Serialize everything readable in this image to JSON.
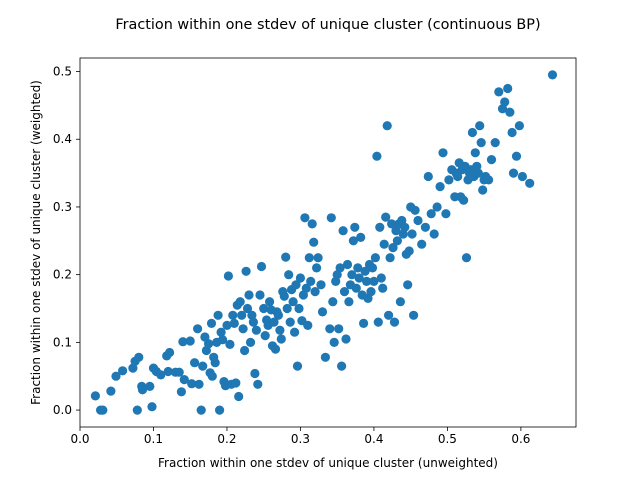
{
  "chart_data": {
    "type": "scatter",
    "title": "Fraction within one stdev of unique cluster (continuous BP)",
    "xlabel": "Fraction within one stdev of unique cluster (unweighted)",
    "ylabel": "Fraction within one stdev of unique cluster (weighted)",
    "xlim": [
      0.0,
      0.675
    ],
    "ylim": [
      -0.025,
      0.52
    ],
    "xticks": [
      0.0,
      0.1,
      0.2,
      0.3,
      0.4,
      0.5,
      0.6
    ],
    "xtick_labels": [
      "0.0",
      "0.1",
      "0.2",
      "0.3",
      "0.4",
      "0.5",
      "0.6"
    ],
    "yticks": [
      0.0,
      0.1,
      0.2,
      0.3,
      0.4,
      0.5
    ],
    "ytick_labels": [
      "0.0",
      "0.1",
      "0.2",
      "0.3",
      "0.4",
      "0.5"
    ],
    "grid": false,
    "marker_color": "#1f77b4",
    "points": [
      [
        0.021,
        0.021
      ],
      [
        0.028,
        0.0
      ],
      [
        0.031,
        0.0
      ],
      [
        0.042,
        0.028
      ],
      [
        0.049,
        0.05
      ],
      [
        0.058,
        0.058
      ],
      [
        0.072,
        0.062
      ],
      [
        0.075,
        0.072
      ],
      [
        0.078,
        0.0
      ],
      [
        0.08,
        0.078
      ],
      [
        0.084,
        0.035
      ],
      [
        0.085,
        0.03
      ],
      [
        0.095,
        0.035
      ],
      [
        0.098,
        0.005
      ],
      [
        0.1,
        0.062
      ],
      [
        0.104,
        0.057
      ],
      [
        0.11,
        0.052
      ],
      [
        0.118,
        0.08
      ],
      [
        0.12,
        0.057
      ],
      [
        0.122,
        0.085
      ],
      [
        0.13,
        0.056
      ],
      [
        0.135,
        0.056
      ],
      [
        0.138,
        0.027
      ],
      [
        0.14,
        0.101
      ],
      [
        0.142,
        0.045
      ],
      [
        0.15,
        0.102
      ],
      [
        0.152,
        0.039
      ],
      [
        0.156,
        0.07
      ],
      [
        0.16,
        0.12
      ],
      [
        0.162,
        0.038
      ],
      [
        0.165,
        0.0
      ],
      [
        0.167,
        0.065
      ],
      [
        0.17,
        0.108
      ],
      [
        0.172,
        0.088
      ],
      [
        0.175,
        0.098
      ],
      [
        0.177,
        0.055
      ],
      [
        0.179,
        0.128
      ],
      [
        0.18,
        0.05
      ],
      [
        0.182,
        0.078
      ],
      [
        0.184,
        0.07
      ],
      [
        0.186,
        0.1
      ],
      [
        0.188,
        0.14
      ],
      [
        0.19,
        0.0
      ],
      [
        0.192,
        0.115
      ],
      [
        0.194,
        0.104
      ],
      [
        0.196,
        0.042
      ],
      [
        0.198,
        0.036
      ],
      [
        0.2,
        0.125
      ],
      [
        0.202,
        0.198
      ],
      [
        0.204,
        0.097
      ],
      [
        0.206,
        0.038
      ],
      [
        0.208,
        0.14
      ],
      [
        0.21,
        0.128
      ],
      [
        0.212,
        0.04
      ],
      [
        0.214,
        0.155
      ],
      [
        0.216,
        0.02
      ],
      [
        0.218,
        0.16
      ],
      [
        0.22,
        0.14
      ],
      [
        0.222,
        0.12
      ],
      [
        0.224,
        0.088
      ],
      [
        0.226,
        0.205
      ],
      [
        0.228,
        0.15
      ],
      [
        0.23,
        0.17
      ],
      [
        0.232,
        0.1
      ],
      [
        0.234,
        0.14
      ],
      [
        0.236,
        0.13
      ],
      [
        0.238,
        0.054
      ],
      [
        0.24,
        0.118
      ],
      [
        0.242,
        0.038
      ],
      [
        0.245,
        0.17
      ],
      [
        0.247,
        0.212
      ],
      [
        0.25,
        0.15
      ],
      [
        0.252,
        0.11
      ],
      [
        0.254,
        0.133
      ],
      [
        0.256,
        0.125
      ],
      [
        0.258,
        0.16
      ],
      [
        0.26,
        0.148
      ],
      [
        0.262,
        0.095
      ],
      [
        0.264,
        0.13
      ],
      [
        0.266,
        0.09
      ],
      [
        0.268,
        0.145
      ],
      [
        0.27,
        0.14
      ],
      [
        0.272,
        0.118
      ],
      [
        0.274,
        0.105
      ],
      [
        0.276,
        0.175
      ],
      [
        0.278,
        0.168
      ],
      [
        0.28,
        0.226
      ],
      [
        0.282,
        0.15
      ],
      [
        0.284,
        0.2
      ],
      [
        0.286,
        0.13
      ],
      [
        0.288,
        0.178
      ],
      [
        0.29,
        0.16
      ],
      [
        0.292,
        0.115
      ],
      [
        0.294,
        0.185
      ],
      [
        0.296,
        0.065
      ],
      [
        0.298,
        0.15
      ],
      [
        0.3,
        0.195
      ],
      [
        0.302,
        0.132
      ],
      [
        0.304,
        0.17
      ],
      [
        0.306,
        0.284
      ],
      [
        0.308,
        0.18
      ],
      [
        0.31,
        0.125
      ],
      [
        0.312,
        0.225
      ],
      [
        0.314,
        0.19
      ],
      [
        0.316,
        0.275
      ],
      [
        0.318,
        0.248
      ],
      [
        0.32,
        0.175
      ],
      [
        0.322,
        0.21
      ],
      [
        0.324,
        0.225
      ],
      [
        0.328,
        0.185
      ],
      [
        0.33,
        0.145
      ],
      [
        0.334,
        0.078
      ],
      [
        0.34,
        0.12
      ],
      [
        0.342,
        0.284
      ],
      [
        0.344,
        0.16
      ],
      [
        0.346,
        0.1
      ],
      [
        0.348,
        0.19
      ],
      [
        0.35,
        0.2
      ],
      [
        0.352,
        0.12
      ],
      [
        0.354,
        0.21
      ],
      [
        0.356,
        0.065
      ],
      [
        0.358,
        0.265
      ],
      [
        0.36,
        0.175
      ],
      [
        0.362,
        0.105
      ],
      [
        0.364,
        0.215
      ],
      [
        0.366,
        0.16
      ],
      [
        0.368,
        0.185
      ],
      [
        0.37,
        0.2
      ],
      [
        0.372,
        0.25
      ],
      [
        0.374,
        0.27
      ],
      [
        0.376,
        0.18
      ],
      [
        0.378,
        0.21
      ],
      [
        0.38,
        0.195
      ],
      [
        0.382,
        0.255
      ],
      [
        0.384,
        0.17
      ],
      [
        0.386,
        0.128
      ],
      [
        0.388,
        0.205
      ],
      [
        0.39,
        0.19
      ],
      [
        0.392,
        0.165
      ],
      [
        0.394,
        0.215
      ],
      [
        0.396,
        0.175
      ],
      [
        0.398,
        0.21
      ],
      [
        0.4,
        0.19
      ],
      [
        0.402,
        0.225
      ],
      [
        0.404,
        0.375
      ],
      [
        0.406,
        0.13
      ],
      [
        0.408,
        0.27
      ],
      [
        0.41,
        0.195
      ],
      [
        0.412,
        0.18
      ],
      [
        0.414,
        0.245
      ],
      [
        0.416,
        0.285
      ],
      [
        0.418,
        0.42
      ],
      [
        0.42,
        0.14
      ],
      [
        0.422,
        0.225
      ],
      [
        0.424,
        0.275
      ],
      [
        0.426,
        0.24
      ],
      [
        0.428,
        0.13
      ],
      [
        0.43,
        0.265
      ],
      [
        0.432,
        0.25
      ],
      [
        0.434,
        0.275
      ],
      [
        0.436,
        0.16
      ],
      [
        0.438,
        0.28
      ],
      [
        0.44,
        0.26
      ],
      [
        0.442,
        0.27
      ],
      [
        0.444,
        0.23
      ],
      [
        0.446,
        0.185
      ],
      [
        0.448,
        0.235
      ],
      [
        0.45,
        0.3
      ],
      [
        0.452,
        0.26
      ],
      [
        0.454,
        0.14
      ],
      [
        0.456,
        0.295
      ],
      [
        0.46,
        0.28
      ],
      [
        0.465,
        0.245
      ],
      [
        0.47,
        0.27
      ],
      [
        0.474,
        0.345
      ],
      [
        0.478,
        0.29
      ],
      [
        0.482,
        0.26
      ],
      [
        0.486,
        0.3
      ],
      [
        0.49,
        0.33
      ],
      [
        0.494,
        0.38
      ],
      [
        0.498,
        0.29
      ],
      [
        0.502,
        0.34
      ],
      [
        0.506,
        0.355
      ],
      [
        0.51,
        0.315
      ],
      [
        0.512,
        0.35
      ],
      [
        0.514,
        0.345
      ],
      [
        0.516,
        0.365
      ],
      [
        0.518,
        0.315
      ],
      [
        0.52,
        0.355
      ],
      [
        0.522,
        0.31
      ],
      [
        0.524,
        0.36
      ],
      [
        0.526,
        0.225
      ],
      [
        0.528,
        0.34
      ],
      [
        0.53,
        0.35
      ],
      [
        0.532,
        0.355
      ],
      [
        0.534,
        0.41
      ],
      [
        0.536,
        0.345
      ],
      [
        0.538,
        0.38
      ],
      [
        0.54,
        0.36
      ],
      [
        0.542,
        0.35
      ],
      [
        0.544,
        0.42
      ],
      [
        0.546,
        0.395
      ],
      [
        0.548,
        0.325
      ],
      [
        0.55,
        0.34
      ],
      [
        0.552,
        0.345
      ],
      [
        0.556,
        0.34
      ],
      [
        0.56,
        0.37
      ],
      [
        0.565,
        0.395
      ],
      [
        0.57,
        0.47
      ],
      [
        0.575,
        0.445
      ],
      [
        0.578,
        0.455
      ],
      [
        0.582,
        0.475
      ],
      [
        0.585,
        0.44
      ],
      [
        0.588,
        0.41
      ],
      [
        0.59,
        0.35
      ],
      [
        0.594,
        0.375
      ],
      [
        0.598,
        0.42
      ],
      [
        0.602,
        0.345
      ],
      [
        0.612,
        0.335
      ],
      [
        0.643,
        0.495
      ]
    ]
  }
}
